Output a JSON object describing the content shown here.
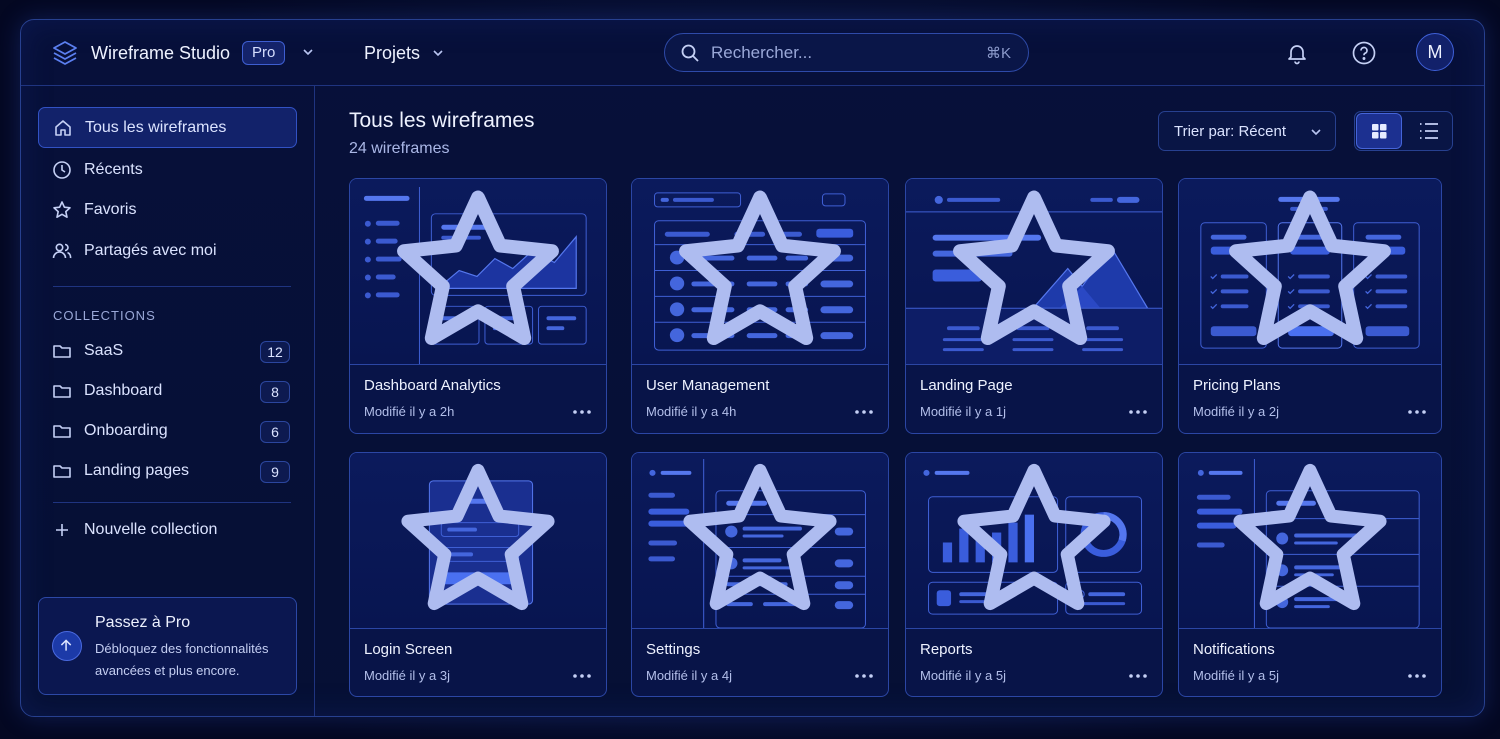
{
  "app": {
    "brand": "Wireframe Studio",
    "plan_badge": "Pro",
    "projects_label": "Projets",
    "search": {
      "placeholder": "Rechercher...",
      "shortcut": "⌘K"
    },
    "avatar_initial": "M",
    "accent": "#3c5fe0"
  },
  "sidebar": {
    "nav": [
      {
        "label": "Tous les wireframes",
        "icon": "home-icon",
        "active": true
      },
      {
        "label": "Récents",
        "icon": "clock-icon"
      },
      {
        "label": "Favoris",
        "icon": "star-icon"
      },
      {
        "label": "Partagés avec moi",
        "icon": "users-icon"
      }
    ],
    "collections_title": "COLLECTIONS",
    "collections": [
      {
        "label": "SaaS",
        "count": "12",
        "icon": "folder-icon"
      },
      {
        "label": "Dashboard",
        "count": "8",
        "icon": "folder-icon"
      },
      {
        "label": "Onboarding",
        "count": "6",
        "icon": "folder-icon"
      },
      {
        "label": "Landing pages",
        "count": "9",
        "icon": "folder-icon"
      }
    ],
    "new_collection": "Nouvelle collection",
    "promo": {
      "title": "Passez à Pro",
      "text": "Débloquez des fonctionnalités avancées et plus encore."
    }
  },
  "main": {
    "title": "Tous les wireframes",
    "subtitle": "24 wireframes",
    "sort_label": "Trier par: Récent",
    "cards": [
      {
        "title": "Dashboard Analytics",
        "meta": "Modifié il y a 2h",
        "thumb": "dashboard"
      },
      {
        "title": "User Management",
        "meta": "Modifié il y a 4h",
        "thumb": "table"
      },
      {
        "title": "Landing Page",
        "meta": "Modifié il y a 1j",
        "thumb": "landing"
      },
      {
        "title": "Pricing Plans",
        "meta": "Modifié il y a 2j",
        "thumb": "pricing"
      },
      {
        "title": "Login Screen",
        "meta": "Modifié il y a 3j",
        "thumb": "login"
      },
      {
        "title": "Settings",
        "meta": "Modifié il y a 4j",
        "thumb": "settings"
      },
      {
        "title": "Reports",
        "meta": "Modifié il y a 5j",
        "thumb": "reports"
      },
      {
        "title": "Notifications",
        "meta": "Modifié il y a 5j",
        "thumb": "notifications"
      }
    ]
  }
}
